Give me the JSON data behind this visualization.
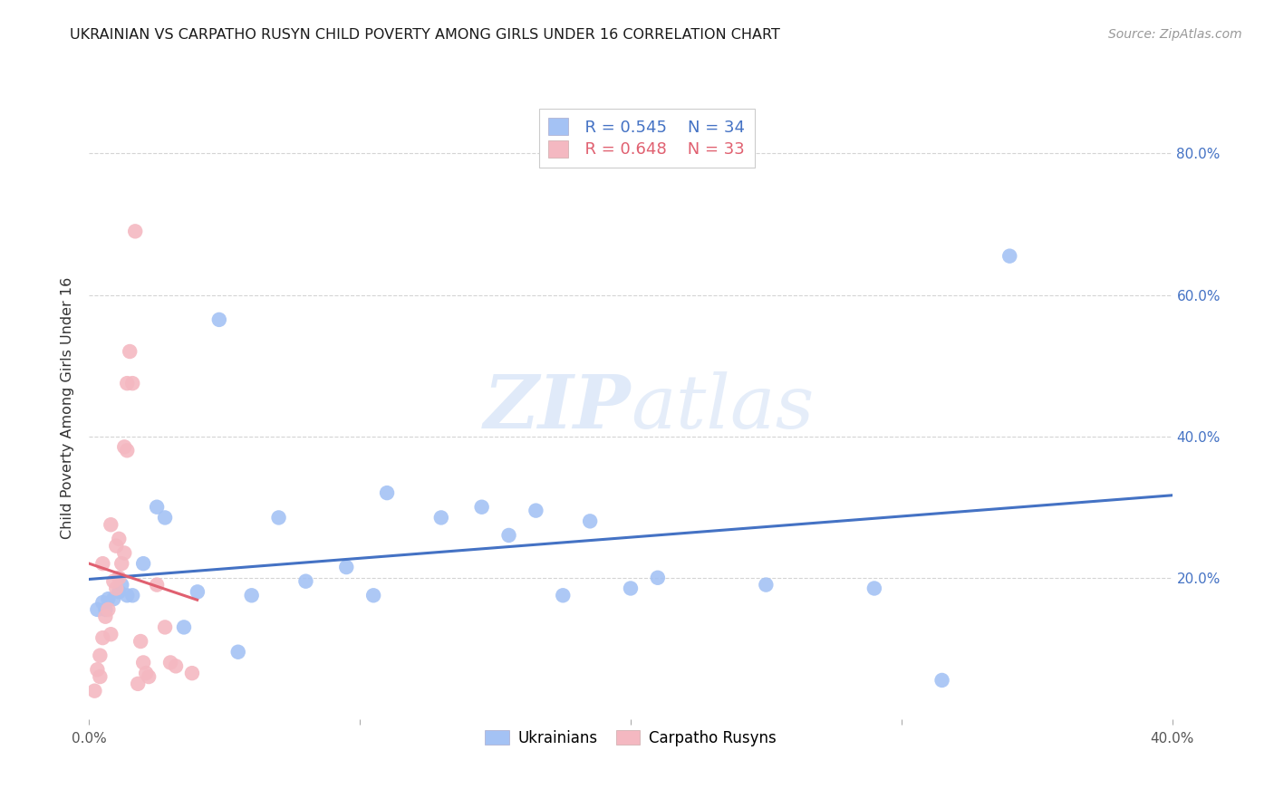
{
  "title": "UKRAINIAN VS CARPATHO RUSYN CHILD POVERTY AMONG GIRLS UNDER 16 CORRELATION CHART",
  "source": "Source: ZipAtlas.com",
  "ylabel": "Child Poverty Among Girls Under 16",
  "xlim": [
    0.0,
    0.4
  ],
  "ylim": [
    0.0,
    0.88
  ],
  "xticks": [
    0.0,
    0.1,
    0.2,
    0.3,
    0.4
  ],
  "xtick_labels": [
    "0.0%",
    "",
    "",
    "",
    "40.0%"
  ],
  "yticks": [
    0.2,
    0.4,
    0.6,
    0.8
  ],
  "ytick_labels_right": [
    "20.0%",
    "40.0%",
    "60.0%",
    "80.0%"
  ],
  "watermark_line1": "ZIP",
  "watermark_line2": "atlas",
  "blue_scatter_color": "#a4c2f4",
  "pink_scatter_color": "#f4b8c1",
  "blue_line_color": "#4472c4",
  "pink_line_color": "#e06070",
  "right_tick_color": "#4472c4",
  "legend_r_blue": "R = 0.545",
  "legend_n_blue": "N = 34",
  "legend_r_pink": "R = 0.648",
  "legend_n_pink": "N = 33",
  "ukrainians_x": [
    0.003,
    0.005,
    0.006,
    0.007,
    0.009,
    0.011,
    0.012,
    0.014,
    0.016,
    0.02,
    0.025,
    0.028,
    0.035,
    0.04,
    0.048,
    0.055,
    0.06,
    0.07,
    0.08,
    0.095,
    0.105,
    0.11,
    0.13,
    0.145,
    0.155,
    0.165,
    0.175,
    0.185,
    0.2,
    0.21,
    0.25,
    0.29,
    0.315,
    0.34
  ],
  "ukrainians_y": [
    0.155,
    0.165,
    0.155,
    0.17,
    0.17,
    0.18,
    0.19,
    0.175,
    0.175,
    0.22,
    0.3,
    0.285,
    0.13,
    0.18,
    0.565,
    0.095,
    0.175,
    0.285,
    0.195,
    0.215,
    0.175,
    0.32,
    0.285,
    0.3,
    0.26,
    0.295,
    0.175,
    0.28,
    0.185,
    0.2,
    0.19,
    0.185,
    0.055,
    0.655
  ],
  "rusyns_x": [
    0.002,
    0.003,
    0.004,
    0.004,
    0.005,
    0.005,
    0.006,
    0.007,
    0.008,
    0.008,
    0.009,
    0.01,
    0.01,
    0.011,
    0.011,
    0.012,
    0.013,
    0.013,
    0.014,
    0.014,
    0.015,
    0.016,
    0.017,
    0.018,
    0.019,
    0.02,
    0.021,
    0.022,
    0.025,
    0.028,
    0.03,
    0.032,
    0.038
  ],
  "rusyns_y": [
    0.04,
    0.07,
    0.06,
    0.09,
    0.115,
    0.22,
    0.145,
    0.155,
    0.12,
    0.275,
    0.195,
    0.185,
    0.245,
    0.2,
    0.255,
    0.22,
    0.235,
    0.385,
    0.38,
    0.475,
    0.52,
    0.475,
    0.69,
    0.05,
    0.11,
    0.08,
    0.065,
    0.06,
    0.19,
    0.13,
    0.08,
    0.075,
    0.065
  ],
  "background_color": "#ffffff",
  "grid_color": "#d0d0d0"
}
